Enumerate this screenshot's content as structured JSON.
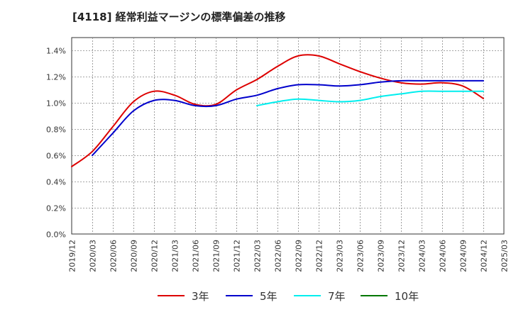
{
  "title": "[4118]  経常利益マージンの標準偏差の推移",
  "chart_data": {
    "type": "line",
    "ylim": [
      0,
      0.015
    ],
    "y_ticks": [
      0,
      0.002,
      0.004,
      0.006,
      0.008,
      0.01,
      0.012,
      0.014
    ],
    "y_tick_labels": [
      "0.0%",
      "0.2%",
      "0.4%",
      "0.6%",
      "0.8%",
      "1.0%",
      "1.2%",
      "1.4%"
    ],
    "x_ticks": [
      "2019/12",
      "2020/03",
      "2020/06",
      "2020/09",
      "2020/12",
      "2021/03",
      "2021/06",
      "2021/09",
      "2021/12",
      "2022/03",
      "2022/06",
      "2022/09",
      "2022/12",
      "2023/03",
      "2023/06",
      "2023/09",
      "2023/12",
      "2024/03",
      "2024/06",
      "2024/09",
      "2024/12",
      "2025/03"
    ],
    "grid": true,
    "legend_position": "bottom",
    "series": [
      {
        "name": "3年",
        "color": "#dd0000",
        "points": [
          [
            "2019/12",
            0.00515
          ],
          [
            "2020/03",
            0.0063
          ],
          [
            "2020/06",
            0.0082
          ],
          [
            "2020/09",
            0.0101
          ],
          [
            "2020/12",
            0.0109
          ],
          [
            "2021/03",
            0.0106
          ],
          [
            "2021/06",
            0.0099
          ],
          [
            "2021/09",
            0.0099
          ],
          [
            "2021/12",
            0.011
          ],
          [
            "2022/03",
            0.0118
          ],
          [
            "2022/06",
            0.0128
          ],
          [
            "2022/09",
            0.0136
          ],
          [
            "2022/12",
            0.0136
          ],
          [
            "2023/03",
            0.013
          ],
          [
            "2023/06",
            0.0124
          ],
          [
            "2023/09",
            0.0119
          ],
          [
            "2023/12",
            0.01155
          ],
          [
            "2024/03",
            0.01145
          ],
          [
            "2024/06",
            0.01155
          ],
          [
            "2024/09",
            0.0113
          ],
          [
            "2024/12",
            0.01035
          ]
        ]
      },
      {
        "name": "5年",
        "color": "#0000cc",
        "points": [
          [
            "2020/03",
            0.006
          ],
          [
            "2020/06",
            0.0077
          ],
          [
            "2020/09",
            0.0094
          ],
          [
            "2020/12",
            0.0102
          ],
          [
            "2021/03",
            0.0102
          ],
          [
            "2021/06",
            0.0098
          ],
          [
            "2021/09",
            0.0098
          ],
          [
            "2021/12",
            0.0103
          ],
          [
            "2022/03",
            0.0106
          ],
          [
            "2022/06",
            0.0111
          ],
          [
            "2022/09",
            0.0114
          ],
          [
            "2022/12",
            0.0114
          ],
          [
            "2023/03",
            0.0113
          ],
          [
            "2023/06",
            0.0114
          ],
          [
            "2023/09",
            0.0116
          ],
          [
            "2023/12",
            0.0117
          ],
          [
            "2024/03",
            0.0117
          ],
          [
            "2024/06",
            0.0117
          ],
          [
            "2024/09",
            0.0117
          ],
          [
            "2024/12",
            0.0117
          ]
        ]
      },
      {
        "name": "7年",
        "color": "#00eeee",
        "points": [
          [
            "2022/03",
            0.0098
          ],
          [
            "2022/06",
            0.0101
          ],
          [
            "2022/09",
            0.0103
          ],
          [
            "2022/12",
            0.0102
          ],
          [
            "2023/03",
            0.0101
          ],
          [
            "2023/06",
            0.0102
          ],
          [
            "2023/09",
            0.0105
          ],
          [
            "2023/12",
            0.0107
          ],
          [
            "2024/03",
            0.0109
          ],
          [
            "2024/06",
            0.0109
          ],
          [
            "2024/09",
            0.0109
          ],
          [
            "2024/12",
            0.0109
          ]
        ]
      },
      {
        "name": "10年",
        "color": "#007700",
        "points": []
      }
    ]
  }
}
